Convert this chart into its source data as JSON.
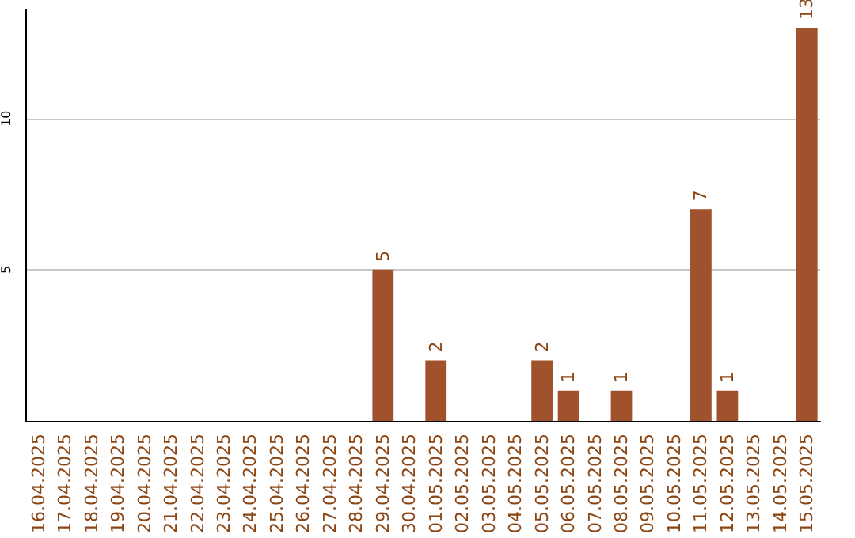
{
  "chart_data": {
    "type": "bar",
    "categories": [
      "16.04.2025",
      "17.04.2025",
      "18.04.2025",
      "19.04.2025",
      "20.04.2025",
      "21.04.2025",
      "22.04.2025",
      "23.04.2025",
      "24.04.2025",
      "25.04.2025",
      "26.04.2025",
      "27.04.2025",
      "28.04.2025",
      "29.04.2025",
      "30.04.2025",
      "01.05.2025",
      "02.05.2025",
      "03.05.2025",
      "04.05.2025",
      "05.05.2025",
      "06.05.2025",
      "07.05.2025",
      "08.05.2025",
      "09.05.2025",
      "10.05.2025",
      "11.05.2025",
      "12.05.2025",
      "13.05.2025",
      "14.05.2025",
      "15.05.2025"
    ],
    "values": [
      0,
      0,
      0,
      0,
      0,
      0,
      0,
      0,
      0,
      0,
      0,
      0,
      0,
      5,
      0,
      2,
      0,
      0,
      0,
      2,
      1,
      0,
      1,
      0,
      0,
      7,
      1,
      0,
      0,
      13
    ],
    "value_labels": [
      null,
      null,
      null,
      null,
      null,
      null,
      null,
      null,
      null,
      null,
      null,
      null,
      null,
      "5",
      null,
      "2",
      null,
      null,
      null,
      "2",
      "1",
      null,
      "1",
      null,
      null,
      "7",
      "1",
      null,
      null,
      "13"
    ],
    "color": "#a0522d",
    "ylim": [
      0,
      13.6
    ],
    "yticks": [
      5,
      10
    ],
    "grid": "y"
  }
}
